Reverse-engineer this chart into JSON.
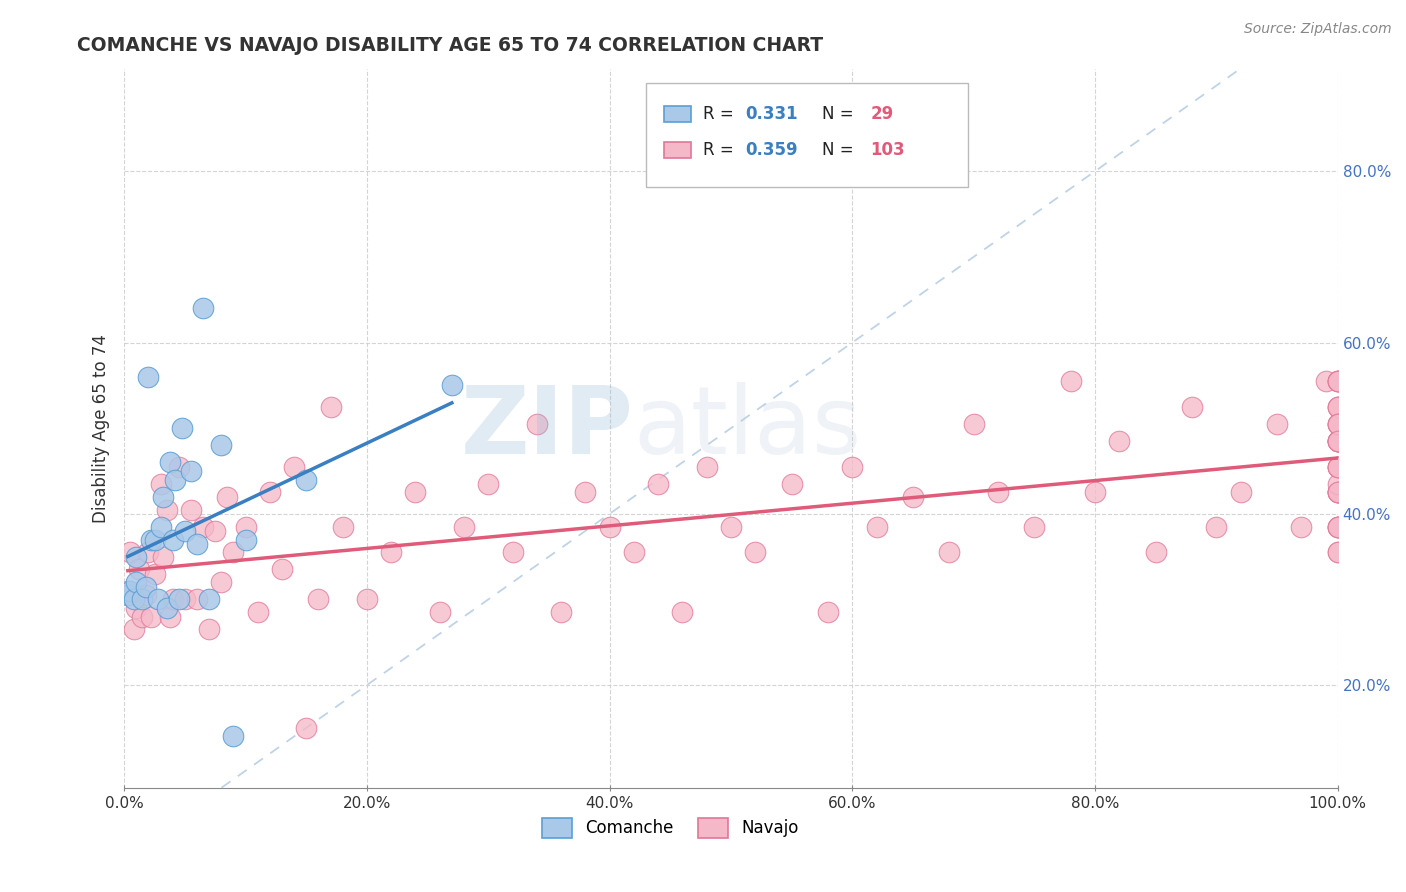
{
  "title": "COMANCHE VS NAVAJO DISABILITY AGE 65 TO 74 CORRELATION CHART",
  "source": "Source: ZipAtlas.com",
  "ylabel": "Disability Age 65 to 74",
  "comanche_color": "#aac8e8",
  "comanche_edge_color": "#5a9fd4",
  "navajo_color": "#f5b8c8",
  "navajo_edge_color": "#e07898",
  "comanche_line_color": "#3a7fc1",
  "navajo_line_color": "#e05a7a",
  "diagonal_color": "#b0c8e0",
  "watermark_color": "#c8dced",
  "comanche_x": [
    0.003,
    0.005,
    0.008,
    0.01,
    0.01,
    0.015,
    0.018,
    0.02,
    0.022,
    0.025,
    0.028,
    0.03,
    0.032,
    0.035,
    0.038,
    0.04,
    0.042,
    0.045,
    0.048,
    0.05,
    0.055,
    0.06,
    0.065,
    0.07,
    0.08,
    0.09,
    0.1,
    0.15,
    0.27
  ],
  "comanche_y": [
    0.305,
    0.31,
    0.3,
    0.32,
    0.35,
    0.3,
    0.315,
    0.56,
    0.37,
    0.37,
    0.3,
    0.385,
    0.42,
    0.29,
    0.46,
    0.37,
    0.44,
    0.3,
    0.5,
    0.38,
    0.45,
    0.365,
    0.64,
    0.3,
    0.48,
    0.14,
    0.37,
    0.44,
    0.55
  ],
  "navajo_x": [
    0.003,
    0.005,
    0.008,
    0.01,
    0.012,
    0.015,
    0.018,
    0.02,
    0.022,
    0.025,
    0.03,
    0.032,
    0.035,
    0.038,
    0.04,
    0.045,
    0.05,
    0.055,
    0.06,
    0.065,
    0.07,
    0.075,
    0.08,
    0.085,
    0.09,
    0.1,
    0.11,
    0.12,
    0.13,
    0.14,
    0.15,
    0.16,
    0.17,
    0.18,
    0.2,
    0.22,
    0.24,
    0.26,
    0.28,
    0.3,
    0.32,
    0.34,
    0.36,
    0.38,
    0.4,
    0.42,
    0.44,
    0.46,
    0.48,
    0.5,
    0.52,
    0.55,
    0.58,
    0.6,
    0.62,
    0.65,
    0.68,
    0.7,
    0.72,
    0.75,
    0.78,
    0.8,
    0.82,
    0.85,
    0.88,
    0.9,
    0.92,
    0.95,
    0.97,
    0.99,
    1.0,
    1.0,
    1.0,
    1.0,
    1.0,
    1.0,
    1.0,
    1.0,
    1.0,
    1.0,
    1.0,
    1.0,
    1.0,
    1.0,
    1.0,
    1.0,
    1.0,
    1.0,
    1.0,
    1.0,
    1.0,
    1.0,
    1.0,
    1.0,
    1.0,
    1.0,
    1.0,
    1.0,
    1.0,
    1.0,
    1.0,
    1.0,
    1.0
  ],
  "navajo_y": [
    0.31,
    0.355,
    0.265,
    0.29,
    0.335,
    0.28,
    0.305,
    0.355,
    0.28,
    0.33,
    0.435,
    0.35,
    0.405,
    0.28,
    0.3,
    0.455,
    0.3,
    0.405,
    0.3,
    0.385,
    0.265,
    0.38,
    0.32,
    0.42,
    0.355,
    0.385,
    0.285,
    0.425,
    0.335,
    0.455,
    0.15,
    0.3,
    0.525,
    0.385,
    0.3,
    0.355,
    0.425,
    0.285,
    0.385,
    0.435,
    0.355,
    0.505,
    0.285,
    0.425,
    0.385,
    0.355,
    0.435,
    0.285,
    0.455,
    0.385,
    0.355,
    0.435,
    0.285,
    0.455,
    0.385,
    0.42,
    0.355,
    0.505,
    0.425,
    0.385,
    0.555,
    0.425,
    0.485,
    0.355,
    0.525,
    0.385,
    0.425,
    0.505,
    0.385,
    0.555,
    0.425,
    0.485,
    0.525,
    0.385,
    0.555,
    0.455,
    0.505,
    0.425,
    0.555,
    0.485,
    0.525,
    0.385,
    0.555,
    0.455,
    0.505,
    0.425,
    0.555,
    0.485,
    0.355,
    0.425,
    0.485,
    0.525,
    0.385,
    0.435,
    0.505,
    0.455,
    0.385,
    0.485,
    0.425,
    0.355,
    0.455,
    0.505,
    0.485
  ],
  "xlim": [
    0.0,
    1.0
  ],
  "ylim": [
    0.08,
    0.92
  ],
  "xticks": [
    0.0,
    0.2,
    0.4,
    0.6,
    0.8,
    1.0
  ],
  "yticks": [
    0.2,
    0.4,
    0.6,
    0.8
  ],
  "xtick_labels": [
    "0.0%",
    "20.0%",
    "40.0%",
    "60.0%",
    "80.0%",
    "100.0%"
  ],
  "ytick_labels": [
    "20.0%",
    "40.0%",
    "60.0%",
    "80.0%"
  ]
}
